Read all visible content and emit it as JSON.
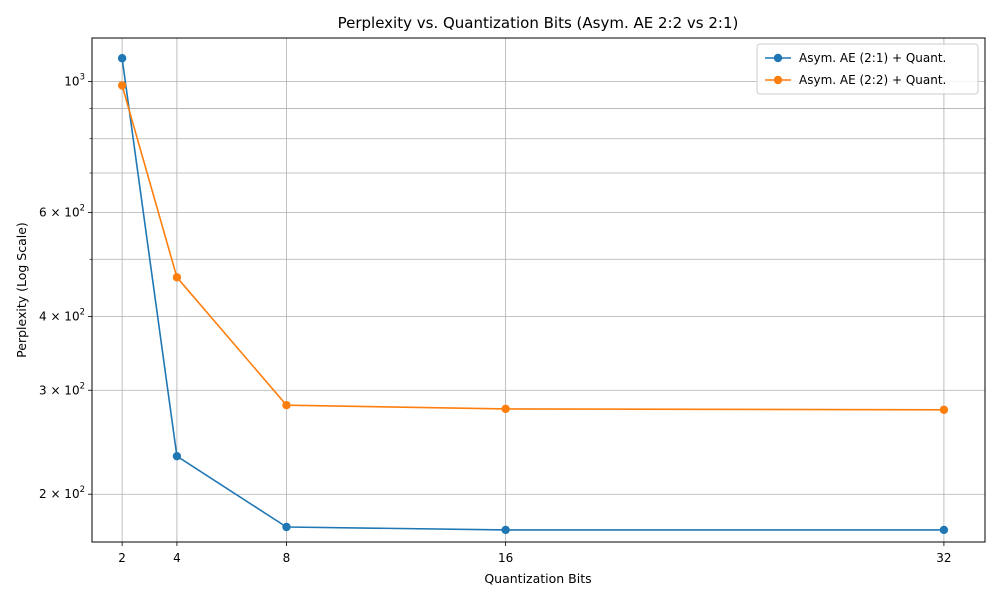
{
  "chart_data": {
    "type": "line",
    "title": "Perplexity vs. Quantization Bits (Asym. AE 2:2 vs 2:1)",
    "xlabel": "Quantization Bits",
    "ylabel": "Perplexity (Log Scale)",
    "x": [
      2,
      4,
      8,
      16,
      32
    ],
    "x_ticks": [
      "2",
      "4",
      "8",
      "16",
      "32"
    ],
    "xlim": [
      0.9,
      33.5
    ],
    "ylim": [
      166,
      1185
    ],
    "y_scale": "log",
    "y_major_ticks": [
      {
        "value": 200,
        "base": "2",
        "exp": "2"
      },
      {
        "value": 300,
        "base": "3",
        "exp": "2"
      },
      {
        "value": 400,
        "base": "4",
        "exp": "2"
      },
      {
        "value": 600,
        "base": "6",
        "exp": "2"
      },
      {
        "value": 1000,
        "base": "10",
        "exp": "3"
      }
    ],
    "y_minor_ticks": [
      500,
      700,
      800,
      900
    ],
    "grid": true,
    "legend_position": "top-right",
    "series": [
      {
        "name": "Asym. AE (2:1) + Quant.",
        "color": "#1f77b4",
        "values": [
          1095,
          232,
          176,
          174,
          174
        ]
      },
      {
        "name": "Asym. AE (2:2) + Quant.",
        "color": "#ff7f0e",
        "values": [
          985,
          466,
          283,
          279,
          278
        ]
      }
    ]
  }
}
